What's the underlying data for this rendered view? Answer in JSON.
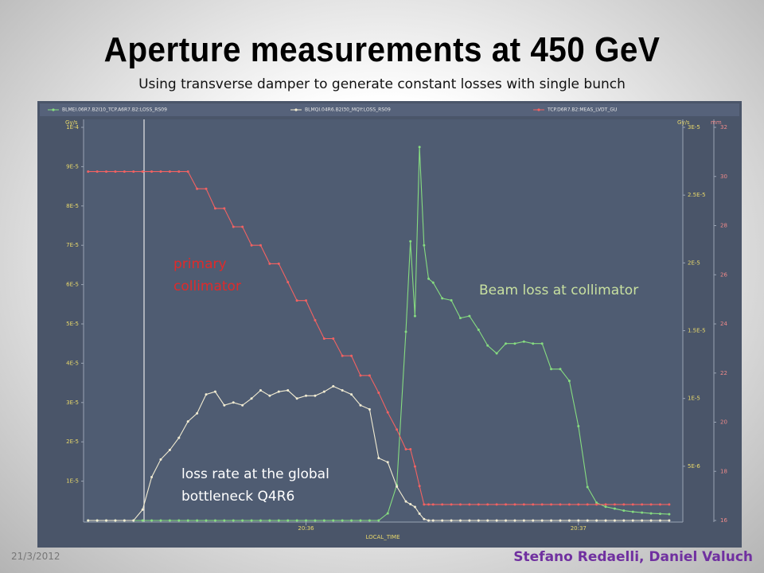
{
  "slide": {
    "title": "Aperture measurements at 450 GeV",
    "subtitle": "Using transverse damper to generate constant losses with single bunch",
    "date": "21/3/2012",
    "authors": "Stefano Redaelli, Daniel Valuch"
  },
  "chart_data": {
    "type": "line",
    "xlabel": "LOCAL_TIME",
    "ylabel": "Gy/s",
    "y2label": "Gy/s",
    "y3label": "mm",
    "annotations": [
      "primary collimator",
      "Beam loss at collimator",
      "loss rate at the global bottleneck Q4R6"
    ],
    "x": [
      74112,
      74114,
      74116,
      74118,
      74120,
      74122,
      74124,
      74126,
      74128,
      74130,
      74132,
      74134,
      74136,
      74138,
      74140,
      74142,
      74144,
      74146,
      74148,
      74150,
      74152,
      74154,
      74156,
      74158,
      74160,
      74162,
      74164,
      74166,
      74168,
      74170,
      74172,
      74174,
      74176,
      74178,
      74180,
      74182,
      74183,
      74184,
      74185,
      74186,
      74187,
      74188,
      74190,
      74192,
      74194,
      74196,
      74198,
      74200,
      74202,
      74204,
      74206,
      74208,
      74210,
      74212,
      74214,
      74216,
      74218,
      74220,
      74222,
      74224,
      74226,
      74228,
      74230,
      74232,
      74234,
      74236,
      74238,
      74240
    ],
    "xlim": [
      74111,
      74243
    ],
    "xticks": [
      {
        "value": 74160,
        "label": "20:36"
      },
      {
        "value": 74220,
        "label": "20:37"
      }
    ],
    "ylim": [
      0,
      0.0001
    ],
    "yticks": [
      {
        "value": 1e-05,
        "label": "1E-5"
      },
      {
        "value": 2e-05,
        "label": "2E-5"
      },
      {
        "value": 3e-05,
        "label": "3E-5"
      },
      {
        "value": 4e-05,
        "label": "4E-5"
      },
      {
        "value": 5e-05,
        "label": "5E-5"
      },
      {
        "value": 6e-05,
        "label": "6E-5"
      },
      {
        "value": 7e-05,
        "label": "7E-5"
      },
      {
        "value": 8e-05,
        "label": "8E-5"
      },
      {
        "value": 9e-05,
        "label": "9E-5"
      },
      {
        "value": 0.0001,
        "label": "1E-4"
      }
    ],
    "y2lim": [
      1e-06,
      3e-05
    ],
    "y2ticks": [
      {
        "value": 5e-06,
        "label": "5E-6"
      },
      {
        "value": 1e-05,
        "label": "1E-5"
      },
      {
        "value": 1.5e-05,
        "label": "1.5E-5"
      },
      {
        "value": 2e-05,
        "label": "2E-5"
      },
      {
        "value": 2.5e-05,
        "label": "2.5E-5"
      },
      {
        "value": 3e-05,
        "label": "3E-5"
      }
    ],
    "y3lim": [
      16,
      32
    ],
    "y3ticks": [
      16,
      18,
      20,
      22,
      24,
      26,
      28,
      30,
      32
    ],
    "grid": false,
    "series": [
      {
        "name": "BLMEI.06R7.B2I10_TCP.A6R7.B2:LOSS_RS09",
        "color": "#86dc80",
        "axis": "y",
        "values": [
          0,
          0,
          0,
          0,
          0,
          0,
          0,
          0,
          0,
          0,
          0,
          0,
          0,
          0,
          0,
          0,
          0,
          0,
          0,
          0,
          0,
          0,
          0,
          0,
          0,
          0,
          0,
          0,
          0,
          0,
          0,
          0,
          0,
          1.8e-06,
          9e-06,
          4.8e-05,
          7.1e-05,
          5.2e-05,
          9.5e-05,
          7e-05,
          6.15e-05,
          6.05e-05,
          5.65e-05,
          5.6e-05,
          5.15e-05,
          5.2e-05,
          4.85e-05,
          4.45e-05,
          4.25e-05,
          4.5e-05,
          4.5e-05,
          4.55e-05,
          4.5e-05,
          4.5e-05,
          3.85e-05,
          3.85e-05,
          3.55e-05,
          2.4e-05,
          8.5e-06,
          4.5e-06,
          3.5e-06,
          3e-06,
          2.5e-06,
          2.2e-06,
          2e-06,
          1.8e-06,
          1.7e-06,
          1.6e-06
        ]
      },
      {
        "name": "BLMQI.04R6.B2I30_MQY:LOSS_RS09",
        "color": "#f2ecd2",
        "axis": "y2",
        "values": [
          1e-06,
          1e-06,
          1e-06,
          1e-06,
          1e-06,
          1e-06,
          1.8e-06,
          4.2e-06,
          5.5e-06,
          6.2e-06,
          7.1e-06,
          8.3e-06,
          8.9e-06,
          1.03e-05,
          1.05e-05,
          9.5e-06,
          9.7e-06,
          9.5e-06,
          1e-05,
          1.06e-05,
          1.02e-05,
          1.05e-05,
          1.06e-05,
          1e-05,
          1.02e-05,
          1.02e-05,
          1.05e-05,
          1.09e-05,
          1.06e-05,
          1.03e-05,
          9.5e-06,
          9.2e-06,
          5.6e-06,
          5.3e-06,
          3.5e-06,
          2.4e-06,
          2.2e-06,
          2e-06,
          1.5e-06,
          1.1e-06,
          1e-06,
          1e-06,
          1e-06,
          1e-06,
          1e-06,
          1e-06,
          1e-06,
          1e-06,
          1e-06,
          1e-06,
          1e-06,
          1e-06,
          1e-06,
          1e-06,
          1e-06,
          1e-06,
          1e-06,
          1e-06,
          1e-06,
          1e-06,
          1e-06,
          1e-06,
          1e-06,
          1e-06,
          1e-06,
          1e-06,
          1e-06,
          1e-06
        ]
      },
      {
        "name": "TCP.D6R7.B2:MEAS_LVDT_GU",
        "color": "#f26262",
        "axis": "y3",
        "values": [
          30.2,
          30.2,
          30.2,
          30.2,
          30.2,
          30.2,
          30.2,
          30.2,
          30.2,
          30.2,
          30.2,
          30.2,
          29.5,
          29.5,
          28.7,
          28.7,
          27.95,
          27.95,
          27.2,
          27.2,
          26.45,
          26.45,
          25.7,
          24.95,
          24.95,
          24.15,
          23.4,
          23.4,
          22.7,
          22.7,
          21.9,
          21.9,
          21.2,
          20.4,
          19.7,
          18.9,
          18.9,
          18.2,
          17.4,
          16.65,
          16.65,
          16.65,
          16.65,
          16.65,
          16.65,
          16.65,
          16.65,
          16.65,
          16.65,
          16.65,
          16.65,
          16.65,
          16.65,
          16.65,
          16.65,
          16.65,
          16.65,
          16.65,
          16.65,
          16.65,
          16.65,
          16.65,
          16.65,
          16.65,
          16.65,
          16.65,
          16.65,
          16.65
        ]
      }
    ]
  }
}
